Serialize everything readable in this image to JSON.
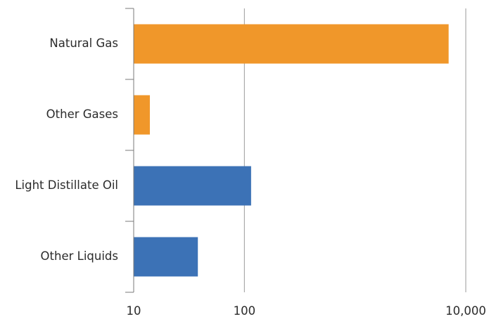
{
  "chart_data": {
    "type": "bar",
    "orientation": "horizontal",
    "x_scale": "log",
    "xlim": [
      10,
      10000
    ],
    "grid": true,
    "title": "",
    "xlabel": "",
    "ylabel": "",
    "categories": [
      "Natural Gas",
      "Other Gases",
      "Light Distillate Oil",
      "Other Liquids"
    ],
    "values": [
      7000,
      14,
      115,
      38
    ],
    "colors": [
      "#f0972a",
      "#f0972a",
      "#3c72b6",
      "#3c72b6"
    ],
    "ticks": [
      {
        "value": 10,
        "label": "10"
      },
      {
        "value": 100,
        "label": "100"
      },
      {
        "value": 10000,
        "label": "10,000"
      }
    ]
  }
}
